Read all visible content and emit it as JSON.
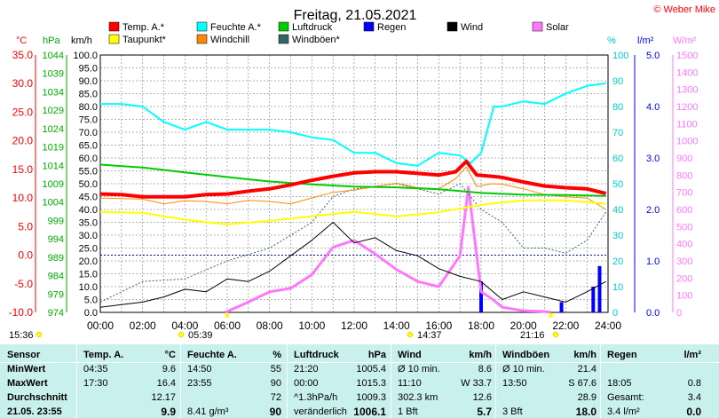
{
  "title": "Freitag, 21.05.2021",
  "copyright": "© Weber Mike",
  "legend": [
    {
      "label": "Temp. A.*",
      "color": "#ff0000"
    },
    {
      "label": "Feuchte A.*",
      "color": "#00ffff"
    },
    {
      "label": "Luftdruck",
      "color": "#00cc00"
    },
    {
      "label": "Regen",
      "color": "#0000ff"
    },
    {
      "label": "Wind",
      "color": "#000000"
    },
    {
      "label": "Solar",
      "color": "#ff77ff"
    },
    {
      "label": "Taupunkt*",
      "color": "#ffff00"
    },
    {
      "label": "Windchill",
      "color": "#ff8800"
    },
    {
      "label": "Windböen*",
      "color": "#336666"
    }
  ],
  "axes": {
    "temp_unit": "°C",
    "press_unit": "hPa",
    "wind_unit": "km/h",
    "hum_unit": "%",
    "rain_unit": "l/m²",
    "solar_unit": "W/m²",
    "temp_ticks": [
      "35.0",
      "30.0",
      "25.0",
      "20.0",
      "15.0",
      "10.0",
      "5.0",
      "0.0",
      "-5.0",
      "-10.0"
    ],
    "press_ticks": [
      "1044",
      "1039",
      "1034",
      "1029",
      "1024",
      "1019",
      "1014",
      "1009",
      "1004",
      "999",
      "994",
      "989",
      "984",
      "979",
      "974"
    ],
    "wind_ticks": [
      "100.0",
      "95.0",
      "90.0",
      "85.0",
      "80.0",
      "75.0",
      "70.0",
      "65.0",
      "60.0",
      "55.0",
      "50.0",
      "45.0",
      "40.0",
      "35.0",
      "30.0",
      "25.0",
      "20.0",
      "15.0",
      "10.0",
      "5.0",
      "0.0"
    ],
    "hum_ticks": [
      "100",
      "90",
      "80",
      "70",
      "60",
      "50",
      "40",
      "30",
      "20",
      "10",
      "0"
    ],
    "rain_ticks": [
      "5.0",
      "4.0",
      "3.0",
      "2.0",
      "1.0",
      "0.0"
    ],
    "solar_ticks": [
      "1500",
      "1400",
      "1300",
      "1200",
      "1100",
      "1000",
      "900",
      "800",
      "700",
      "600",
      "500",
      "400",
      "300",
      "200",
      "100",
      "0"
    ],
    "time_ticks": [
      "00:00",
      "02:00",
      "04:00",
      "06:00",
      "08:00",
      "10:00",
      "12:00",
      "14:00",
      "16:00",
      "18:00",
      "20:00",
      "22:00",
      "24:00"
    ]
  },
  "sun_markers": [
    {
      "label": "15:36"
    },
    {
      "label": "05:39"
    },
    {
      "label": "14:37"
    },
    {
      "label": "21:16"
    }
  ],
  "chart_data": {
    "type": "line",
    "x_unit": "hours",
    "xlim": [
      0,
      24
    ],
    "series": [
      {
        "name": "Temp. A.*",
        "axis": "temp",
        "color": "#ff0000",
        "points": [
          [
            0,
            10.7
          ],
          [
            1,
            10.6
          ],
          [
            2,
            10.2
          ],
          [
            3,
            10.2
          ],
          [
            4,
            10.2
          ],
          [
            5,
            10.6
          ],
          [
            6,
            10.7
          ],
          [
            7,
            11.2
          ],
          [
            8,
            11.6
          ],
          [
            9,
            12.3
          ],
          [
            10,
            13.1
          ],
          [
            11,
            13.8
          ],
          [
            12,
            14.4
          ],
          [
            13,
            14.6
          ],
          [
            14,
            14.6
          ],
          [
            15,
            14.3
          ],
          [
            16,
            14.0
          ],
          [
            16.8,
            14.6
          ],
          [
            17.3,
            16.4
          ],
          [
            17.8,
            14.0
          ],
          [
            18.5,
            13.8
          ],
          [
            19,
            13.6
          ],
          [
            20,
            12.8
          ],
          [
            21,
            12.1
          ],
          [
            22,
            11.8
          ],
          [
            23,
            11.6
          ],
          [
            23.9,
            10.8
          ]
        ]
      },
      {
        "name": "Feuchte A.*",
        "axis": "hum",
        "color": "#00ffff",
        "points": [
          [
            0,
            81
          ],
          [
            1,
            81
          ],
          [
            2,
            80
          ],
          [
            3,
            74
          ],
          [
            4,
            71
          ],
          [
            5,
            74
          ],
          [
            6,
            71
          ],
          [
            7,
            71
          ],
          [
            8,
            71
          ],
          [
            9,
            70
          ],
          [
            10,
            68
          ],
          [
            11,
            67
          ],
          [
            12,
            62
          ],
          [
            13,
            62
          ],
          [
            14,
            58
          ],
          [
            15,
            57
          ],
          [
            16,
            62
          ],
          [
            17,
            61
          ],
          [
            17.5,
            58
          ],
          [
            18,
            62
          ],
          [
            18.6,
            80
          ],
          [
            19,
            80
          ],
          [
            20,
            82
          ],
          [
            21,
            81
          ],
          [
            22,
            85
          ],
          [
            23,
            88
          ],
          [
            23.9,
            89
          ]
        ]
      },
      {
        "name": "Luftdruck",
        "axis": "press",
        "color": "#00cc00",
        "points": [
          [
            0,
            1014.2
          ],
          [
            2,
            1013.4
          ],
          [
            4,
            1012.1
          ],
          [
            6,
            1010.8
          ],
          [
            8,
            1009.6
          ],
          [
            10,
            1008.8
          ],
          [
            12,
            1008.2
          ],
          [
            14,
            1008.0
          ],
          [
            16,
            1007.5
          ],
          [
            18,
            1006.5
          ],
          [
            20,
            1006.0
          ],
          [
            22,
            1005.9
          ],
          [
            23.9,
            1005.7
          ]
        ]
      },
      {
        "name": "Taupunkt*",
        "axis": "temp",
        "color": "#ffff00",
        "points": [
          [
            0,
            7.6
          ],
          [
            2,
            7.4
          ],
          [
            4,
            6.2
          ],
          [
            6,
            5.4
          ],
          [
            8,
            6.0
          ],
          [
            10,
            6.8
          ],
          [
            12,
            7.6
          ],
          [
            14,
            6.8
          ],
          [
            16,
            7.5
          ],
          [
            18,
            8.8
          ],
          [
            20,
            9.6
          ],
          [
            22,
            9.6
          ],
          [
            23.9,
            9.0
          ]
        ]
      },
      {
        "name": "Windchill",
        "axis": "temp",
        "color": "#ff8800",
        "points": [
          [
            0,
            10.0
          ],
          [
            2,
            9.8
          ],
          [
            3,
            9.0
          ],
          [
            4,
            9.5
          ],
          [
            5,
            9.4
          ],
          [
            6,
            9.0
          ],
          [
            7,
            9.6
          ],
          [
            8,
            9.4
          ],
          [
            9,
            9.0
          ],
          [
            10,
            10.0
          ],
          [
            11,
            11.0
          ],
          [
            12,
            11.4
          ],
          [
            13,
            12.0
          ],
          [
            14,
            12.6
          ],
          [
            15,
            11.8
          ],
          [
            16,
            11.6
          ],
          [
            16.8,
            13.4
          ],
          [
            17.3,
            15.4
          ],
          [
            17.8,
            12.0
          ],
          [
            18.5,
            12.5
          ],
          [
            19,
            12.4
          ],
          [
            20,
            11.6
          ],
          [
            21,
            10.6
          ],
          [
            22,
            10.2
          ],
          [
            23,
            10.0
          ],
          [
            23.9,
            8.0
          ]
        ]
      },
      {
        "name": "Windböen*",
        "axis": "wind",
        "color": "#336666",
        "points": [
          [
            0,
            4
          ],
          [
            2,
            12
          ],
          [
            4,
            13
          ],
          [
            6,
            20
          ],
          [
            8,
            25
          ],
          [
            10,
            35
          ],
          [
            11,
            45
          ],
          [
            12,
            48
          ],
          [
            14,
            50
          ],
          [
            15,
            48
          ],
          [
            16,
            46
          ],
          [
            17,
            50
          ],
          [
            18,
            40
          ],
          [
            19,
            35
          ],
          [
            20,
            25
          ],
          [
            21,
            25
          ],
          [
            22,
            23
          ],
          [
            23,
            28
          ],
          [
            23.9,
            39
          ]
        ]
      },
      {
        "name": "Wind",
        "axis": "wind",
        "color": "#000000",
        "points": [
          [
            0,
            2
          ],
          [
            1,
            3
          ],
          [
            2,
            4
          ],
          [
            3,
            6
          ],
          [
            4,
            9
          ],
          [
            5,
            8
          ],
          [
            6,
            13
          ],
          [
            7,
            12
          ],
          [
            8,
            16
          ],
          [
            9,
            22
          ],
          [
            10,
            28
          ],
          [
            11,
            35
          ],
          [
            12,
            27
          ],
          [
            13,
            29
          ],
          [
            14,
            24
          ],
          [
            15,
            22
          ],
          [
            16,
            17
          ],
          [
            17,
            14
          ],
          [
            18,
            12
          ],
          [
            19,
            5
          ],
          [
            20,
            8
          ],
          [
            21,
            6
          ],
          [
            22,
            4
          ],
          [
            23,
            8
          ],
          [
            23.9,
            12
          ]
        ]
      },
      {
        "name": "Solar",
        "axis": "solar",
        "color": "#ff77ff",
        "points": [
          [
            5.9,
            0
          ],
          [
            7,
            60
          ],
          [
            8,
            120
          ],
          [
            9,
            140
          ],
          [
            10,
            220
          ],
          [
            11,
            380
          ],
          [
            12,
            420
          ],
          [
            13,
            340
          ],
          [
            14,
            250
          ],
          [
            15,
            180
          ],
          [
            16,
            150
          ],
          [
            17,
            330
          ],
          [
            17.4,
            730
          ],
          [
            18,
            120
          ],
          [
            18.5,
            80
          ],
          [
            19,
            30
          ],
          [
            20,
            10
          ],
          [
            21,
            5
          ],
          [
            21.3,
            0
          ]
        ]
      }
    ],
    "rain_bars": {
      "name": "Regen",
      "axis": "rain",
      "color": "#0000ff",
      "points": [
        [
          18.0,
          0.6
        ],
        [
          21.8,
          0.2
        ],
        [
          23.3,
          0.5
        ],
        [
          23.6,
          0.9
        ]
      ]
    }
  },
  "stats": {
    "sensor": {
      "header": "Sensor",
      "rows": [
        "MinWert",
        "MaxWert",
        "Durchschnitt",
        "21.05. 23:55"
      ]
    },
    "temp": {
      "header": "Temp. A.",
      "unit": "°C",
      "rows": [
        [
          "04:35",
          "9.6"
        ],
        [
          "17:30",
          "16.4"
        ],
        [
          "",
          "12.17"
        ],
        [
          "",
          "9.9"
        ]
      ]
    },
    "hum": {
      "header": "Feuchte A.",
      "unit": "%",
      "rows": [
        [
          "14:50",
          "55"
        ],
        [
          "23:55",
          "90"
        ],
        [
          "",
          "72"
        ],
        [
          "8.41 g/m³",
          "90"
        ]
      ]
    },
    "press": {
      "header": "Luftdruck",
      "unit": "hPa",
      "rows": [
        [
          "21:20",
          "1005.4"
        ],
        [
          "00:00",
          "1015.3"
        ],
        [
          "^1.3hPa/h",
          "1009.3"
        ],
        [
          "veränderlich",
          "1006.1"
        ]
      ]
    },
    "wind": {
      "header": "Wind",
      "unit": "km/h",
      "rows": [
        [
          "Ø 10 min.",
          "8.6"
        ],
        [
          "11:10",
          "W 33.7"
        ],
        [
          "302.3 km",
          "12.6"
        ],
        [
          "1 Bft",
          "5.7"
        ]
      ]
    },
    "gust": {
      "header": "Windböen",
      "unit": "km/h",
      "rows": [
        [
          "Ø 10 min.",
          "21.4"
        ],
        [
          "13:50",
          "S 67.6"
        ],
        [
          "",
          "28.9"
        ],
        [
          "3 Bft",
          "18.0"
        ]
      ]
    },
    "rain": {
      "header": "Regen",
      "unit": "l/m²",
      "rows": [
        [
          "",
          ""
        ],
        [
          "18:05",
          "0.8"
        ],
        [
          "Gesamt:",
          "3.4"
        ],
        [
          "3.4 l/m²",
          "0.0"
        ]
      ]
    }
  }
}
